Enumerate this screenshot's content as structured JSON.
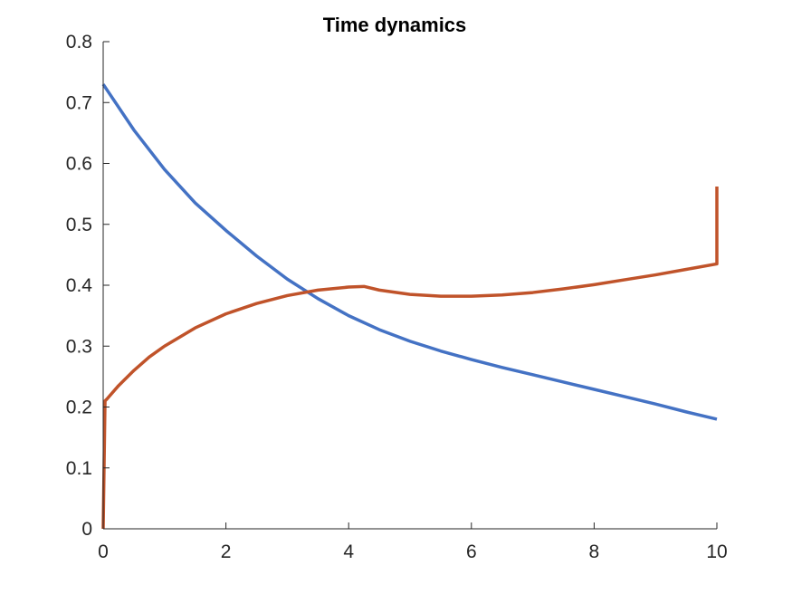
{
  "chart_data": {
    "type": "line",
    "title": "Time dynamics",
    "xlabel": "",
    "ylabel": "",
    "xlim": [
      0,
      10
    ],
    "ylim": [
      0,
      0.8
    ],
    "x_ticks": [
      0,
      2,
      4,
      6,
      8,
      10
    ],
    "y_ticks": [
      0,
      0.1,
      0.2,
      0.3,
      0.4,
      0.5,
      0.6,
      0.7,
      0.8
    ],
    "grid": false,
    "legend": "none",
    "series": [
      {
        "color": "#4472C4",
        "x": [
          0,
          0.5,
          1,
          1.5,
          2,
          2.5,
          3,
          3.5,
          4,
          4.5,
          5,
          5.5,
          6,
          6.5,
          7,
          7.5,
          8,
          8.5,
          9,
          9.5,
          10
        ],
        "y": [
          0.73,
          0.655,
          0.59,
          0.535,
          0.49,
          0.448,
          0.41,
          0.378,
          0.35,
          0.327,
          0.308,
          0.292,
          0.278,
          0.265,
          0.253,
          0.241,
          0.229,
          0.217,
          0.205,
          0.192,
          0.18
        ]
      },
      {
        "color": "#C0532A",
        "x": [
          0,
          0.03,
          0.06,
          0.25,
          0.5,
          0.75,
          1,
          1.5,
          2,
          2.5,
          3,
          3.5,
          4,
          4.25,
          4.5,
          5,
          5.5,
          6,
          6.5,
          7,
          7.5,
          8,
          8.5,
          9,
          9.5,
          10,
          10,
          10
        ],
        "y": [
          0,
          0.21,
          0.213,
          0.235,
          0.26,
          0.282,
          0.3,
          0.33,
          0.353,
          0.37,
          0.383,
          0.392,
          0.397,
          0.398,
          0.392,
          0.385,
          0.382,
          0.382,
          0.384,
          0.388,
          0.394,
          0.401,
          0.409,
          0.417,
          0.426,
          0.435,
          0.5,
          0.562
        ]
      }
    ]
  }
}
